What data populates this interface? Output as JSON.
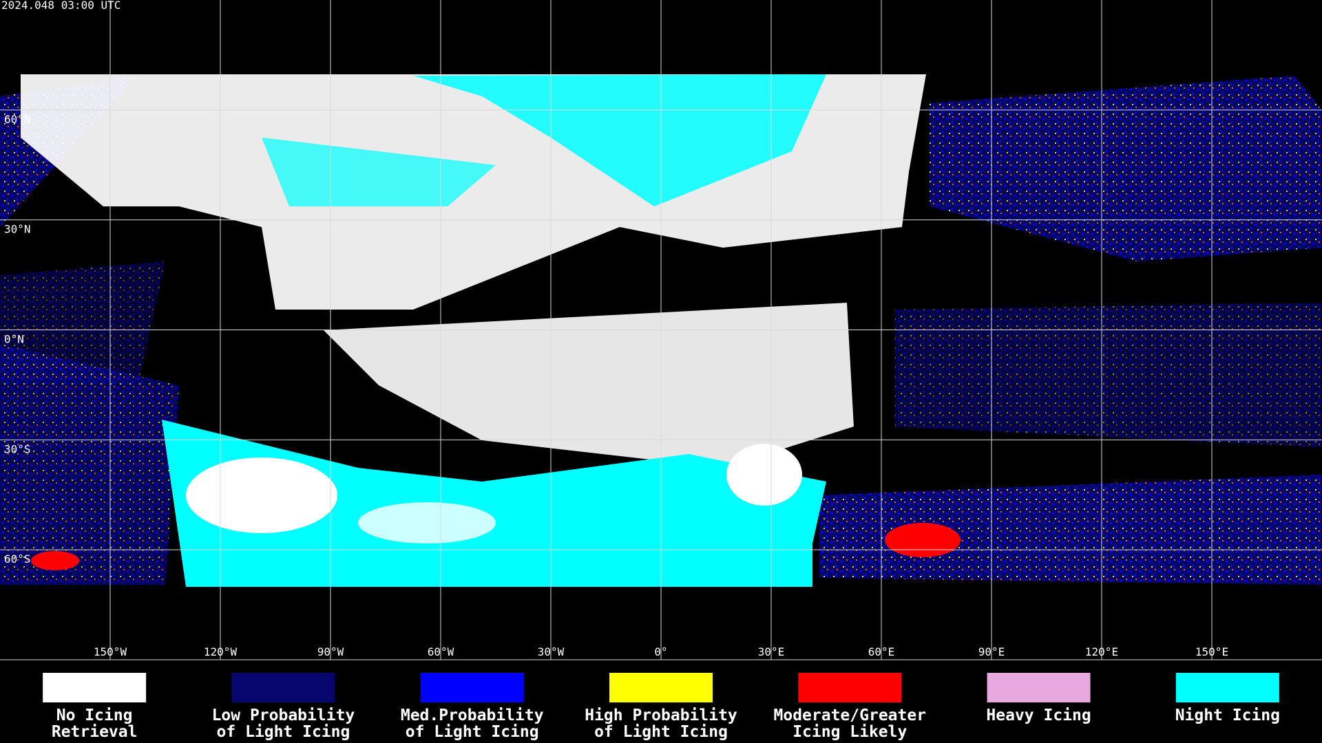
{
  "header": {
    "timestamp": "2024.048 03:00 UTC"
  },
  "map": {
    "longitude_labels": [
      {
        "value": -150,
        "label": "150°W"
      },
      {
        "value": -120,
        "label": "120°W"
      },
      {
        "value": -90,
        "label": "90°W"
      },
      {
        "value": -60,
        "label": "60°W"
      },
      {
        "value": -30,
        "label": "30°W"
      },
      {
        "value": 0,
        "label": "0°"
      },
      {
        "value": 30,
        "label": "30°E"
      },
      {
        "value": 60,
        "label": "60°E"
      },
      {
        "value": 90,
        "label": "90°E"
      },
      {
        "value": 120,
        "label": "120°E"
      },
      {
        "value": 150,
        "label": "150°E"
      }
    ],
    "latitude_labels": [
      {
        "value": 60,
        "label": "60°N"
      },
      {
        "value": 30,
        "label": "30°N"
      },
      {
        "value": 0,
        "label": "0°N"
      },
      {
        "value": -30,
        "label": "30°S"
      },
      {
        "value": -60,
        "label": "60°S"
      }
    ]
  },
  "legend": {
    "items": [
      {
        "lines": [
          "No Icing",
          "Retrieval"
        ],
        "color": "#ffffff"
      },
      {
        "lines": [
          "Low Probability",
          "of Light Icing"
        ],
        "color": "#06066e"
      },
      {
        "lines": [
          "Med.Probability",
          "of Light Icing"
        ],
        "color": "#0000ff"
      },
      {
        "lines": [
          "High Probability",
          "of Light Icing"
        ],
        "color": "#ffff00"
      },
      {
        "lines": [
          "Moderate/Greater",
          "Icing Likely"
        ],
        "color": "#ff0000"
      },
      {
        "lines": [
          "Heavy Icing"
        ],
        "color": "#e8a8e0"
      },
      {
        "lines": [
          "Night Icing"
        ],
        "color": "#00ffff"
      }
    ]
  }
}
